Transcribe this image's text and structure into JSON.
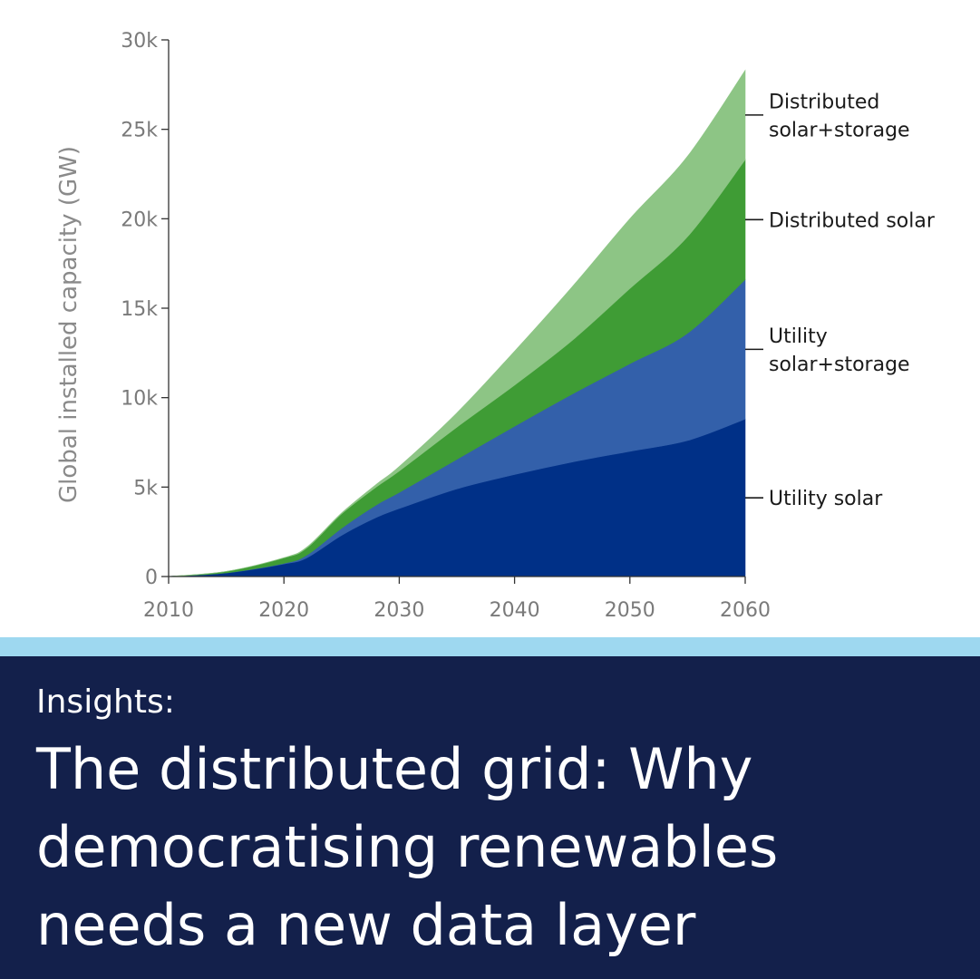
{
  "chart_data": {
    "type": "area",
    "stacked": true,
    "ylabel": "Global installed capacity (GW)",
    "xlabel": "",
    "xlim": [
      2010,
      2060
    ],
    "ylim": [
      0,
      30000
    ],
    "x_ticks": [
      "2010",
      "2020",
      "2030",
      "2040",
      "2050",
      "2060"
    ],
    "y_ticks": [
      "0",
      "5k",
      "10k",
      "15k",
      "20k",
      "25k",
      "30k"
    ],
    "x": [
      2010,
      2015,
      2020,
      2022,
      2025,
      2028,
      2030,
      2035,
      2040,
      2045,
      2050,
      2055,
      2060
    ],
    "series": [
      {
        "name": "Utility solar",
        "color": "#003087",
        "values": [
          0,
          200,
          700,
          1050,
          2300,
          3300,
          3800,
          4900,
          5700,
          6400,
          7000,
          7600,
          8800
        ]
      },
      {
        "name": "Utility solar+storage",
        "color": "#3360aa",
        "values": [
          0,
          5,
          40,
          150,
          400,
          700,
          900,
          1650,
          2700,
          3800,
          4900,
          6000,
          7800
        ]
      },
      {
        "name": "Distributed solar",
        "color": "#3f9c35",
        "values": [
          0,
          80,
          300,
          400,
          800,
          1000,
          1200,
          1800,
          2300,
          3000,
          4200,
          5400,
          6700
        ]
      },
      {
        "name": "Distributed solar+storage",
        "color": "#8dc585",
        "values": [
          0,
          5,
          15,
          50,
          50,
          150,
          250,
          800,
          1900,
          3000,
          3900,
          4500,
          5000
        ]
      }
    ],
    "legend": [
      {
        "lines": [
          "Distributed",
          "solar+storage"
        ]
      },
      {
        "lines": [
          "Distributed solar"
        ]
      },
      {
        "lines": [
          "Utility",
          "solar+storage"
        ]
      },
      {
        "lines": [
          "Utility solar"
        ]
      }
    ],
    "legend_placement": "right",
    "grid": false
  },
  "banner": {
    "kicker": "Insights:",
    "headline_lines": [
      "The distributed grid: Why",
      "democratising renewables",
      "needs a new data layer"
    ]
  },
  "colors": {
    "accent_strip": "#9ed8f0",
    "banner_bg": "#13204b"
  }
}
